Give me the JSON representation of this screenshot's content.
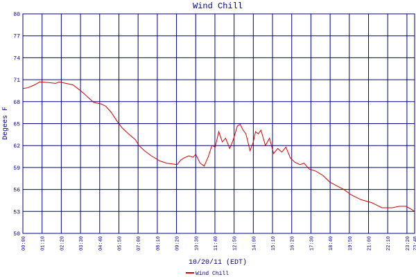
{
  "chart_data": {
    "type": "line",
    "title": "Wind Chill",
    "ylabel": "Degees F",
    "xlabel": "10/20/11 (EDT)",
    "x": [
      0,
      18,
      43,
      61,
      94,
      119,
      132,
      157,
      182,
      200,
      220,
      240,
      258,
      284,
      301,
      321,
      342,
      362,
      385,
      410,
      423,
      443,
      468,
      499,
      524,
      562,
      575,
      587,
      605,
      620,
      630,
      646,
      661,
      676,
      689,
      701,
      714,
      727,
      739,
      754,
      767,
      782,
      792,
      803,
      813,
      828,
      840,
      848,
      858,
      868,
      884,
      899,
      914,
      929,
      944,
      959,
      975,
      992,
      1010,
      1025,
      1043,
      1068,
      1094,
      1119,
      1144,
      1170,
      1195,
      1233,
      1271,
      1309,
      1347,
      1372,
      1397,
      1415,
      1428
    ],
    "series": [
      {
        "name": "Wind Chill",
        "color": "#cc0000",
        "values": [
          69.8,
          69.9,
          70.3,
          70.7,
          70.6,
          70.5,
          70.7,
          70.5,
          70.3,
          69.8,
          69.2,
          68.5,
          67.9,
          67.7,
          67.4,
          66.6,
          65.4,
          64.4,
          63.6,
          62.8,
          62.0,
          61.3,
          60.6,
          59.9,
          59.6,
          59.4,
          60.0,
          60.3,
          60.6,
          60.4,
          60.8,
          59.6,
          59.2,
          60.5,
          62.0,
          61.8,
          63.9,
          62.5,
          63.0,
          61.6,
          62.8,
          64.7,
          64.9,
          64.1,
          63.6,
          61.3,
          62.5,
          63.9,
          63.6,
          64.1,
          62.0,
          63.0,
          60.9,
          61.6,
          61.1,
          61.8,
          60.3,
          59.7,
          59.4,
          59.6,
          58.8,
          58.5,
          57.9,
          57.0,
          56.5,
          56.0,
          55.3,
          54.6,
          54.2,
          53.5,
          53.5,
          53.7,
          53.7,
          53.3,
          53.0
        ]
      }
    ],
    "xlim": [
      0,
      1428
    ],
    "xticks": [
      {
        "value": 0,
        "label": "00:00"
      },
      {
        "value": 70,
        "label": "01:10"
      },
      {
        "value": 140,
        "label": "02:20"
      },
      {
        "value": 210,
        "label": "03:30"
      },
      {
        "value": 280,
        "label": "04:40"
      },
      {
        "value": 350,
        "label": "05:50"
      },
      {
        "value": 420,
        "label": "07:00"
      },
      {
        "value": 490,
        "label": "08:10"
      },
      {
        "value": 560,
        "label": "09:20"
      },
      {
        "value": 630,
        "label": "10:30"
      },
      {
        "value": 700,
        "label": "11:40"
      },
      {
        "value": 770,
        "label": "12:50"
      },
      {
        "value": 840,
        "label": "14:00"
      },
      {
        "value": 910,
        "label": "15:10"
      },
      {
        "value": 980,
        "label": "16:20"
      },
      {
        "value": 1050,
        "label": "17:30"
      },
      {
        "value": 1120,
        "label": "18:40"
      },
      {
        "value": 1190,
        "label": "19:50"
      },
      {
        "value": 1260,
        "label": "21:00"
      },
      {
        "value": 1330,
        "label": "22:10"
      },
      {
        "value": 1400,
        "label": "23:20"
      },
      {
        "value": 1428,
        "label": "23:48"
      }
    ],
    "ylim": [
      50,
      80
    ],
    "yticks": [
      50,
      53,
      56,
      59,
      62,
      65,
      68,
      71,
      74,
      77,
      80
    ],
    "grid": true,
    "grid_color": "#000080"
  }
}
